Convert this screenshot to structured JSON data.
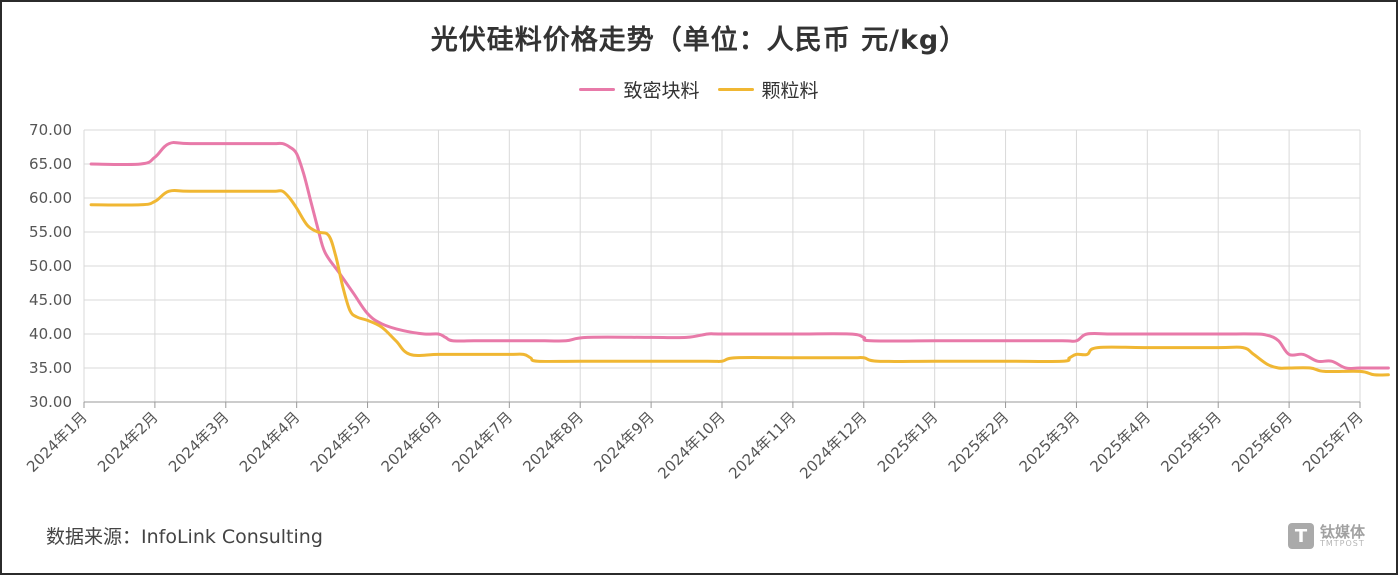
{
  "chart_data": {
    "type": "line",
    "title": "光伏硅料价格走势（单位：人民币 元/kg）",
    "xlabel": "",
    "ylabel": "",
    "ylim": [
      30,
      70
    ],
    "yticks": [
      "30.00",
      "35.00",
      "40.00",
      "45.00",
      "50.00",
      "55.00",
      "60.00",
      "65.00",
      "70.00"
    ],
    "categories": [
      "2024年1月",
      "2024年2月",
      "2024年3月",
      "2024年4月",
      "2024年5月",
      "2024年6月",
      "2024年7月",
      "2024年8月",
      "2024年9月",
      "2024年10月",
      "2024年11月",
      "2024年12月",
      "2025年1月",
      "2025年2月",
      "2025年3月",
      "2025年4月",
      "2025年5月",
      "2025年6月",
      "2025年7月"
    ],
    "grid": true,
    "legend_position": "top-center",
    "series": [
      {
        "name": "致密块料",
        "color": "#e87aa9",
        "points": [
          [
            0.1,
            65
          ],
          [
            0.8,
            65
          ],
          [
            1.0,
            66
          ],
          [
            1.2,
            68
          ],
          [
            1.5,
            68
          ],
          [
            2.5,
            68
          ],
          [
            2.6,
            68
          ],
          [
            2.7,
            68
          ],
          [
            2.8,
            68
          ],
          [
            2.9,
            67.5
          ],
          [
            3.0,
            66.5
          ],
          [
            3.1,
            63.5
          ],
          [
            3.2,
            59.5
          ],
          [
            3.3,
            55.5
          ],
          [
            3.4,
            52
          ],
          [
            3.6,
            49
          ],
          [
            3.8,
            46
          ],
          [
            4.0,
            43
          ],
          [
            4.2,
            41.5
          ],
          [
            4.5,
            40.5
          ],
          [
            4.8,
            40
          ],
          [
            5.0,
            40
          ],
          [
            5.1,
            39.5
          ],
          [
            5.2,
            39
          ],
          [
            5.5,
            39
          ],
          [
            6.0,
            39
          ],
          [
            6.5,
            39
          ],
          [
            6.8,
            39
          ],
          [
            7.1,
            39.5
          ],
          [
            8.0,
            39.5
          ],
          [
            8.5,
            39.5
          ],
          [
            8.8,
            40
          ],
          [
            9.0,
            40
          ],
          [
            10.0,
            40
          ],
          [
            10.8,
            40
          ],
          [
            11.0,
            39.5
          ],
          [
            11.1,
            39
          ],
          [
            12.0,
            39
          ],
          [
            13.0,
            39
          ],
          [
            13.8,
            39
          ],
          [
            14.0,
            39
          ],
          [
            14.15,
            40
          ],
          [
            14.5,
            40
          ],
          [
            15.0,
            40
          ],
          [
            16.0,
            40
          ],
          [
            16.5,
            40
          ],
          [
            16.7,
            39.8
          ],
          [
            16.85,
            39
          ],
          [
            17.0,
            37
          ],
          [
            17.2,
            37
          ],
          [
            17.4,
            36
          ],
          [
            17.6,
            36
          ],
          [
            17.8,
            35
          ],
          [
            18.0,
            35
          ],
          [
            18.4,
            35
          ]
        ]
      },
      {
        "name": "颗粒料",
        "color": "#f0b733",
        "points": [
          [
            0.1,
            59
          ],
          [
            0.8,
            59
          ],
          [
            1.0,
            59.5
          ],
          [
            1.2,
            61
          ],
          [
            1.5,
            61
          ],
          [
            2.5,
            61
          ],
          [
            2.7,
            61
          ],
          [
            2.8,
            61
          ],
          [
            2.9,
            60
          ],
          [
            3.0,
            58.5
          ],
          [
            3.15,
            56
          ],
          [
            3.3,
            55
          ],
          [
            3.45,
            54.5
          ],
          [
            3.55,
            51.5
          ],
          [
            3.65,
            47
          ],
          [
            3.75,
            43.5
          ],
          [
            3.85,
            42.5
          ],
          [
            4.0,
            42
          ],
          [
            4.2,
            41
          ],
          [
            4.4,
            39
          ],
          [
            4.6,
            37
          ],
          [
            5.0,
            37
          ],
          [
            5.5,
            37
          ],
          [
            6.0,
            37
          ],
          [
            6.2,
            37
          ],
          [
            6.3,
            36.5
          ],
          [
            6.4,
            36
          ],
          [
            7.0,
            36
          ],
          [
            8.0,
            36
          ],
          [
            8.8,
            36
          ],
          [
            9.0,
            36
          ],
          [
            9.2,
            36.5
          ],
          [
            10.0,
            36.5
          ],
          [
            10.8,
            36.5
          ],
          [
            11.0,
            36.5
          ],
          [
            11.2,
            36
          ],
          [
            12.0,
            36
          ],
          [
            13.0,
            36
          ],
          [
            13.8,
            36
          ],
          [
            13.9,
            36.5
          ],
          [
            14.0,
            37
          ],
          [
            14.15,
            37
          ],
          [
            14.3,
            38
          ],
          [
            15.0,
            38
          ],
          [
            16.0,
            38
          ],
          [
            16.35,
            38
          ],
          [
            16.5,
            37
          ],
          [
            16.7,
            35.5
          ],
          [
            16.85,
            35
          ],
          [
            17.0,
            35
          ],
          [
            17.3,
            35
          ],
          [
            17.5,
            34.5
          ],
          [
            18.0,
            34.5
          ],
          [
            18.2,
            34
          ],
          [
            18.4,
            34
          ]
        ]
      }
    ]
  },
  "source_text": "数据来源：InfoLink Consulting",
  "watermark": {
    "icon": "T",
    "cn": "钛媒体",
    "en": "TMTPOST"
  }
}
